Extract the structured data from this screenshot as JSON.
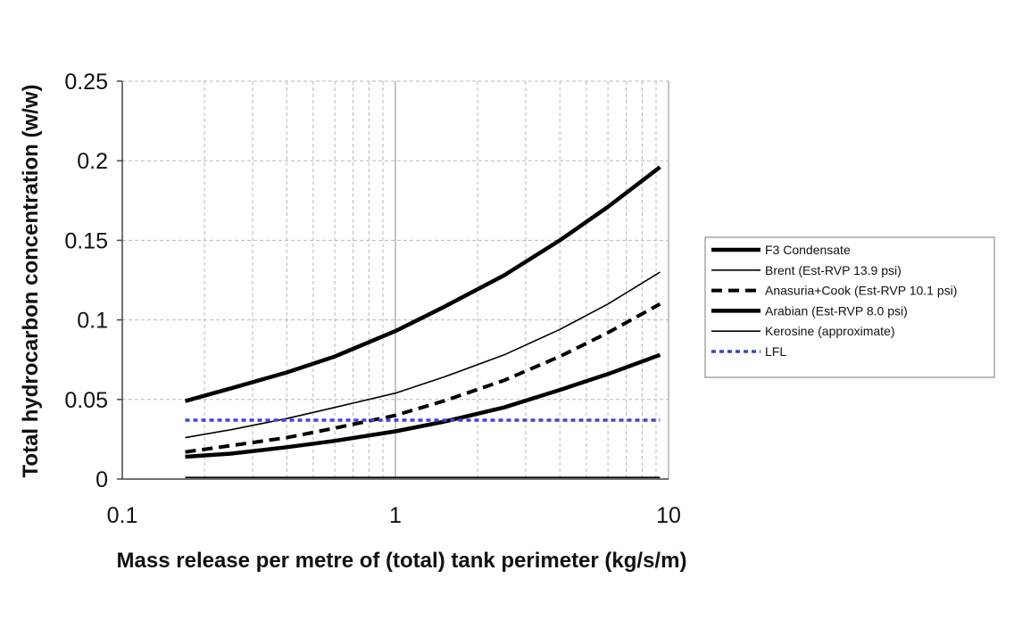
{
  "chart_data": {
    "type": "line",
    "title": "",
    "xlabel": "Mass release per metre of (total) tank perimeter (kg/s/m)",
    "ylabel": "Total hydrocarbon concentration (w/w)",
    "x_scale": "log",
    "xlim": [
      0.1,
      10
    ],
    "ylim": [
      0,
      0.25
    ],
    "x_ticks": [
      0.1,
      1,
      10
    ],
    "x_tick_labels": [
      "0.1",
      "1",
      "10"
    ],
    "y_ticks": [
      0,
      0.05,
      0.1,
      0.15,
      0.2,
      0.25
    ],
    "y_tick_labels": [
      "0",
      "0.05",
      "0.1",
      "0.15",
      "0.2",
      "0.25"
    ],
    "grid": true,
    "legend_position": "right",
    "x": [
      0.17,
      0.25,
      0.4,
      0.6,
      1.0,
      1.5,
      2.5,
      4.0,
      6.0,
      9.3
    ],
    "series": [
      {
        "name": "F3 Condensate",
        "color": "#000000",
        "style": "solid-thick",
        "values": [
          0.049,
          0.057,
          0.067,
          0.077,
          0.093,
          0.108,
          0.128,
          0.15,
          0.171,
          0.196
        ]
      },
      {
        "name": "Brent (Est-RVP 13.9 psi)",
        "color": "#000000",
        "style": "solid-thin",
        "values": [
          0.026,
          0.031,
          0.038,
          0.045,
          0.054,
          0.064,
          0.078,
          0.094,
          0.11,
          0.13
        ]
      },
      {
        "name": "Anasuria+Cook (Est-RVP 10.1 psi)",
        "color": "#000000",
        "style": "dashed",
        "values": [
          0.017,
          0.021,
          0.026,
          0.032,
          0.04,
          0.049,
          0.062,
          0.077,
          0.092,
          0.11
        ]
      },
      {
        "name": "Arabian (Est-RVP 8.0 psi)",
        "color": "#000000",
        "style": "solid-thick",
        "values": [
          0.014,
          0.016,
          0.02,
          0.024,
          0.03,
          0.036,
          0.045,
          0.056,
          0.066,
          0.078
        ]
      },
      {
        "name": "Kerosine (approximate)",
        "color": "#000000",
        "style": "solid-thin",
        "values": [
          0.001,
          0.001,
          0.001,
          0.001,
          0.001,
          0.001,
          0.001,
          0.001,
          0.001,
          0.001
        ]
      },
      {
        "name": "LFL",
        "color": "#3a49c8",
        "style": "dotted",
        "values": [
          0.037,
          0.037,
          0.037,
          0.037,
          0.037,
          0.037,
          0.037,
          0.037,
          0.037,
          0.037
        ]
      }
    ]
  }
}
